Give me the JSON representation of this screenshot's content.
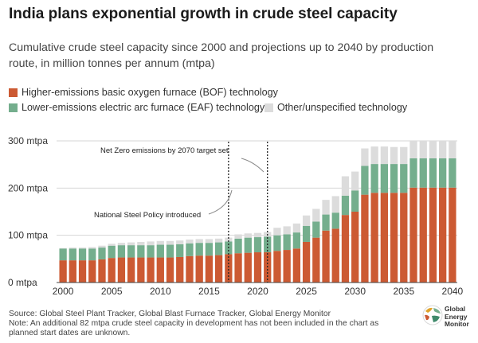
{
  "header": {
    "title": "India plans exponential growth in crude steel capacity",
    "subtitle_line1": "Cumulative crude steel capacity since 2000 and projections up to 2040 by production",
    "subtitle_line2": "route, in million tonnes per annum (mtpa)"
  },
  "legend": {
    "bof": "Higher-emissions basic oxygen furnace (BOF) technology",
    "eaf": "Lower-emissions electric arc furnace (EAF) technology",
    "other": "Other/unspecified technology"
  },
  "colors": {
    "bof": "#cc5a33",
    "eaf": "#74ae8d",
    "other": "#dcdcdc",
    "axis": "#444444"
  },
  "footer": {
    "source": "Source: Global Steel Plant Tracker, Global Blast Furnace Tracker, Global Energy Monitor",
    "note_line1": "Note: An additional 82 mtpa crude steel capacity in development has not been included in the chart as",
    "note_line2": "planned start dates are unknown."
  },
  "logo": {
    "line1": "Global",
    "line2": "Energy",
    "line3": "Monitor"
  },
  "chart_data": {
    "type": "bar",
    "stacked": true,
    "x": [
      2000,
      2001,
      2002,
      2003,
      2004,
      2005,
      2006,
      2007,
      2008,
      2009,
      2010,
      2011,
      2012,
      2013,
      2014,
      2015,
      2016,
      2017,
      2018,
      2019,
      2020,
      2021,
      2022,
      2023,
      2024,
      2025,
      2026,
      2027,
      2028,
      2029,
      2030,
      2031,
      2032,
      2033,
      2034,
      2035,
      2036,
      2037,
      2038,
      2039,
      2040
    ],
    "series": [
      {
        "key": "bof",
        "name": "Higher-emissions basic oxygen furnace (BOF) technology",
        "values": [
          47,
          47,
          47,
          47,
          49,
          52,
          53,
          53,
          53,
          53,
          53,
          53,
          54,
          56,
          57,
          57,
          58,
          60,
          62,
          63,
          64,
          64,
          67,
          69,
          72,
          86,
          95,
          110,
          114,
          143,
          150,
          186,
          190,
          190,
          190,
          190,
          201,
          201,
          201,
          201,
          201
        ]
      },
      {
        "key": "eaf",
        "name": "Lower-emissions electric arc furnace (EAF) technology",
        "values": [
          25,
          25,
          25,
          25,
          25,
          26,
          26,
          26,
          26,
          26,
          27,
          27,
          27,
          27,
          27,
          27,
          27,
          27,
          31,
          32,
          32,
          33,
          33,
          33,
          34,
          34,
          34,
          34,
          34,
          41,
          45,
          61,
          61,
          61,
          61,
          61,
          62,
          62,
          62,
          62,
          62
        ]
      },
      {
        "key": "other",
        "name": "Other/unspecified technology",
        "values": [
          1,
          2,
          2,
          3,
          4,
          4,
          5,
          6,
          7,
          8,
          8,
          8,
          8,
          8,
          8,
          8,
          8,
          8,
          9,
          9,
          9,
          10,
          16,
          17,
          19,
          22,
          27,
          31,
          35,
          41,
          40,
          37,
          37,
          37,
          36,
          36,
          36,
          36,
          36,
          36,
          36
        ]
      }
    ],
    "xticks": [
      2000,
      2005,
      2010,
      2015,
      2020,
      2025,
      2030,
      2035,
      2040
    ],
    "yticks": [
      0,
      100,
      200,
      300
    ],
    "ytick_labels": [
      "0 mtpa",
      "100 mtpa",
      "200 mtpa",
      "300 mtpa"
    ],
    "ylim": [
      0,
      300
    ],
    "grid": true,
    "legend_position": "top",
    "annotations": [
      {
        "text": "Net Zero emissions by 2070 target set",
        "x": 2021.5
      },
      {
        "text": "National Steel Policy introduced",
        "x": 2017.5
      }
    ]
  }
}
